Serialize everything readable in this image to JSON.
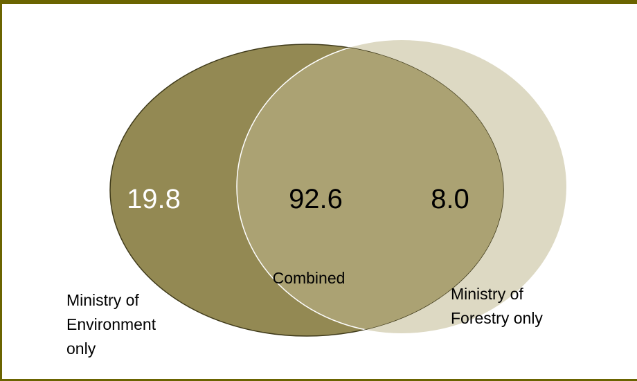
{
  "diagram": {
    "type": "venn",
    "sets": {
      "left": {
        "value": "19.8",
        "label_lines": [
          "Ministry of",
          "Environment",
          "only"
        ],
        "color": "#938953"
      },
      "right": {
        "value": "8.0",
        "label_lines": [
          "Ministry of",
          "Forestry only"
        ],
        "color": "#ddd9c3"
      },
      "overlap": {
        "value": "92.6",
        "label": "Combined",
        "color": "#aba273"
      }
    },
    "frame_color": "#6b6400"
  }
}
